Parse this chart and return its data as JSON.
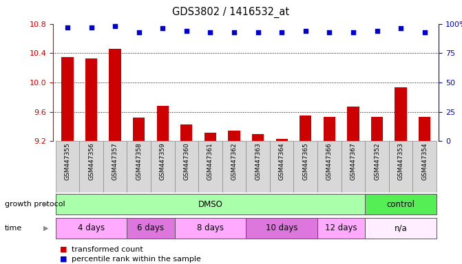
{
  "title": "GDS3802 / 1416532_at",
  "samples": [
    "GSM447355",
    "GSM447356",
    "GSM447357",
    "GSM447358",
    "GSM447359",
    "GSM447360",
    "GSM447361",
    "GSM447362",
    "GSM447363",
    "GSM447364",
    "GSM447365",
    "GSM447366",
    "GSM447367",
    "GSM447352",
    "GSM447353",
    "GSM447354"
  ],
  "bar_values": [
    10.35,
    10.33,
    10.46,
    9.52,
    9.68,
    9.43,
    9.32,
    9.34,
    9.3,
    9.23,
    9.55,
    9.53,
    9.67,
    9.53,
    9.93,
    9.53
  ],
  "percentile_values": [
    97,
    97,
    98,
    93,
    96,
    94,
    93,
    93,
    93,
    93,
    94,
    93,
    93,
    94,
    96,
    93
  ],
  "bar_color": "#cc0000",
  "percentile_color": "#0000cc",
  "ylim_left": [
    9.2,
    10.8
  ],
  "ylim_right": [
    0,
    100
  ],
  "yticks_left": [
    9.2,
    9.6,
    10.0,
    10.4,
    10.8
  ],
  "yticks_right": [
    0,
    25,
    50,
    75,
    100
  ],
  "grid_values": [
    9.6,
    10.0,
    10.4
  ],
  "growth_protocol_groups": [
    {
      "label": "DMSO",
      "start": 0,
      "end": 13,
      "color": "#aaffaa"
    },
    {
      "label": "control",
      "start": 13,
      "end": 16,
      "color": "#55ee55"
    }
  ],
  "time_groups": [
    {
      "label": "4 days",
      "start": 0,
      "end": 3,
      "color": "#ffaaff"
    },
    {
      "label": "6 days",
      "start": 3,
      "end": 5,
      "color": "#dd77dd"
    },
    {
      "label": "8 days",
      "start": 5,
      "end": 8,
      "color": "#ffaaff"
    },
    {
      "label": "10 days",
      "start": 8,
      "end": 11,
      "color": "#dd77dd"
    },
    {
      "label": "12 days",
      "start": 11,
      "end": 13,
      "color": "#ffaaff"
    },
    {
      "label": "n/a",
      "start": 13,
      "end": 16,
      "color": "#ffeeff"
    }
  ],
  "legend_items": [
    {
      "label": "transformed count",
      "color": "#cc0000"
    },
    {
      "label": "percentile rank within the sample",
      "color": "#0000cc"
    }
  ],
  "growth_protocol_label": "growth protocol",
  "time_label": "time",
  "background_color": "#ffffff",
  "bar_width": 0.5,
  "label_bg_color": "#d8d8d8",
  "label_border_color": "#888888"
}
